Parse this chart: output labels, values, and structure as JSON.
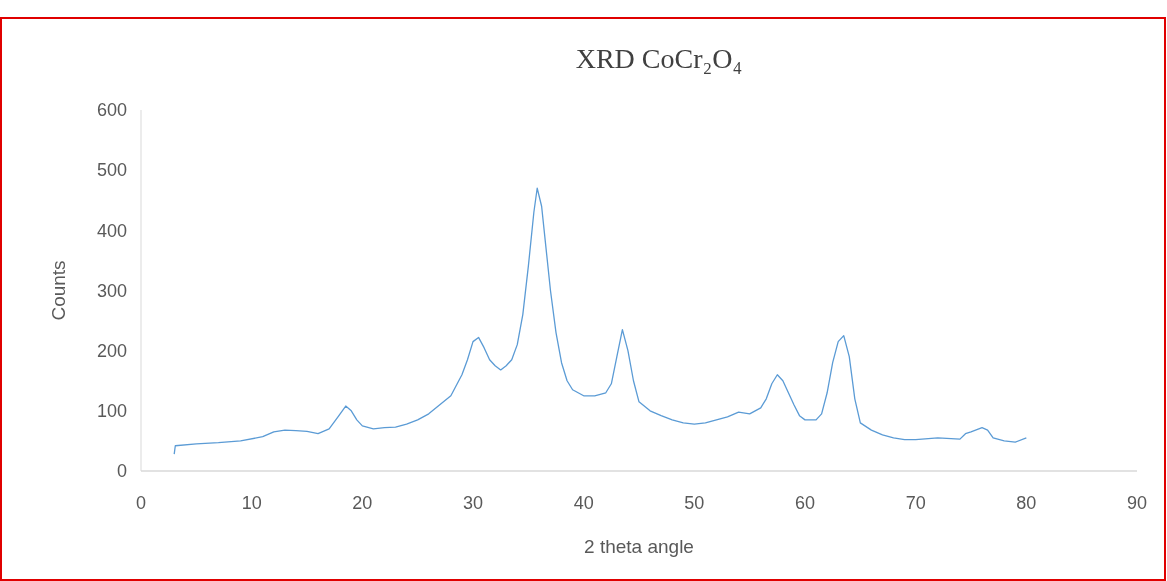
{
  "chart_data": {
    "type": "line",
    "title": "XRD CoCr₂O₄",
    "xlabel": "2 theta angle",
    "ylabel": "Counts",
    "xlim": [
      0,
      90
    ],
    "xticks": [
      0,
      10,
      20,
      30,
      40,
      50,
      60,
      70,
      80,
      90
    ],
    "ylim": [
      0,
      600
    ],
    "yticks": [
      0,
      100,
      200,
      300,
      400,
      500,
      600
    ],
    "grid": false,
    "marker": "none",
    "line_style": "solid",
    "series": [
      {
        "color": "#5b9bd5",
        "x": [
          3,
          3.1,
          5,
          7,
          9,
          11,
          12,
          13,
          14,
          15,
          16,
          17,
          17.8,
          18.5,
          19,
          19.5,
          20,
          21,
          22,
          23,
          24,
          25,
          26,
          27,
          28,
          29,
          29.5,
          30,
          30.5,
          31,
          31.5,
          32,
          32.5,
          33,
          33.5,
          34,
          34.5,
          35,
          35.5,
          35.8,
          36.2,
          36.6,
          37,
          37.5,
          38,
          38.5,
          39,
          40,
          41,
          42,
          42.5,
          43,
          43.5,
          44,
          44.5,
          45,
          46,
          47,
          48,
          49,
          50,
          51,
          52,
          53,
          54,
          55,
          56,
          56.5,
          57,
          57.5,
          58,
          58.5,
          59,
          59.5,
          60,
          61,
          61.5,
          62,
          62.5,
          63,
          63.5,
          64,
          64.5,
          65,
          66,
          67,
          68,
          69,
          70,
          72,
          74,
          74.5,
          75,
          76,
          76.5,
          77,
          78,
          79,
          80
        ],
        "values": [
          28,
          42,
          45,
          47,
          50,
          57,
          65,
          68,
          67,
          66,
          62,
          70,
          90,
          108,
          100,
          85,
          75,
          70,
          72,
          73,
          78,
          85,
          95,
          110,
          125,
          160,
          185,
          215,
          222,
          205,
          185,
          175,
          168,
          175,
          185,
          210,
          260,
          340,
          430,
          470,
          440,
          370,
          300,
          230,
          180,
          150,
          135,
          125,
          125,
          130,
          145,
          190,
          235,
          200,
          150,
          115,
          100,
          92,
          85,
          80,
          78,
          80,
          85,
          90,
          98,
          95,
          105,
          120,
          145,
          160,
          150,
          130,
          110,
          92,
          85,
          85,
          95,
          130,
          180,
          215,
          225,
          190,
          120,
          80,
          68,
          60,
          55,
          52,
          52,
          55,
          53,
          62,
          65,
          72,
          68,
          55,
          50,
          48,
          55
        ]
      }
    ]
  }
}
